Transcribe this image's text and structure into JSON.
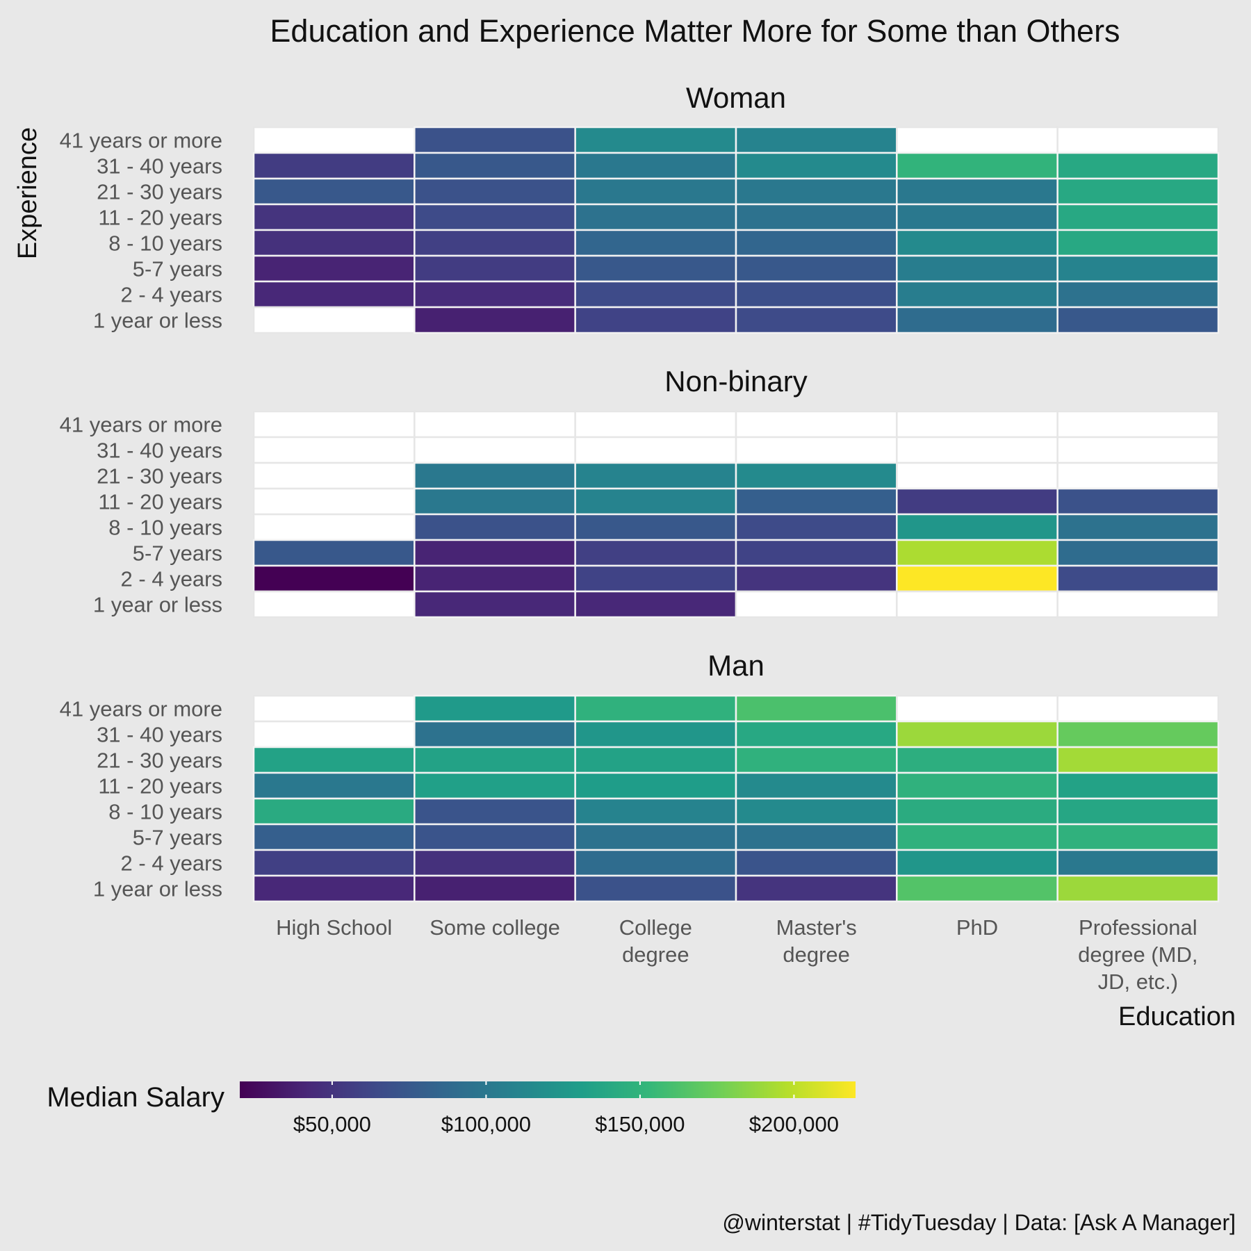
{
  "chart_data": {
    "type": "heatmap",
    "title": "Education and Experience Matter More for Some than Others",
    "xlabel": "Education",
    "ylabel": "Experience",
    "x_categories": [
      "High School",
      "Some college",
      "College degree",
      "Master's degree",
      "PhD",
      "Professional degree (MD, JD, etc.)"
    ],
    "x_tick_lines": [
      [
        "High School"
      ],
      [
        "Some college"
      ],
      [
        "College",
        "degree"
      ],
      [
        "Master's",
        "degree"
      ],
      [
        "PhD"
      ],
      [
        "Professional",
        "degree (MD,",
        "JD, etc.)"
      ]
    ],
    "y_categories": [
      "41 years or more",
      "31 - 40 years",
      "21 - 30 years",
      "11 - 20 years",
      "8 - 10 years",
      "5-7 years",
      "2 - 4 years",
      "1 year or less"
    ],
    "facets": [
      {
        "name": "Woman",
        "values": [
          [
            null,
            70000,
            115000,
            110000,
            null,
            null
          ],
          [
            55000,
            75000,
            100000,
            115000,
            150000,
            140000
          ],
          [
            75000,
            70000,
            100000,
            100000,
            100000,
            140000
          ],
          [
            50000,
            65000,
            95000,
            95000,
            100000,
            140000
          ],
          [
            48000,
            58000,
            85000,
            85000,
            115000,
            140000
          ],
          [
            40000,
            55000,
            75000,
            75000,
            105000,
            110000
          ],
          [
            42000,
            45000,
            65000,
            68000,
            105000,
            95000
          ],
          [
            null,
            38000,
            60000,
            65000,
            90000,
            75000
          ]
        ]
      },
      {
        "name": "Non-binary",
        "values": [
          [
            null,
            null,
            null,
            null,
            null,
            null
          ],
          [
            null,
            null,
            null,
            null,
            null,
            null
          ],
          [
            null,
            100000,
            110000,
            115000,
            null,
            null
          ],
          [
            null,
            100000,
            110000,
            80000,
            55000,
            70000
          ],
          [
            null,
            70000,
            75000,
            65000,
            125000,
            95000
          ],
          [
            75000,
            40000,
            58000,
            60000,
            195000,
            90000
          ],
          [
            20000,
            40000,
            60000,
            50000,
            220000,
            65000
          ],
          [
            null,
            42000,
            42000,
            null,
            null,
            null
          ]
        ]
      },
      {
        "name": "Man",
        "values": [
          [
            null,
            128000,
            148000,
            162000,
            null,
            null
          ],
          [
            null,
            95000,
            125000,
            140000,
            190000,
            172000
          ],
          [
            135000,
            135000,
            135000,
            148000,
            145000,
            192000
          ],
          [
            100000,
            133000,
            130000,
            115000,
            148000,
            135000
          ],
          [
            142000,
            72000,
            110000,
            115000,
            143000,
            138000
          ],
          [
            80000,
            72000,
            95000,
            95000,
            148000,
            148000
          ],
          [
            58000,
            48000,
            90000,
            72000,
            125000,
            100000
          ],
          [
            42000,
            38000,
            70000,
            50000,
            165000,
            190000
          ]
        ]
      }
    ],
    "missing_color": "#ffffff",
    "legend": {
      "title": "Median Salary",
      "min": 20000,
      "max": 220000,
      "ticks": [
        50000,
        100000,
        150000,
        200000
      ],
      "tick_labels": [
        "$50,000",
        "$100,000",
        "$150,000",
        "$200,000"
      ],
      "palette": [
        "#440154",
        "#482878",
        "#3e4a89",
        "#31688e",
        "#26828e",
        "#1f9e89",
        "#35b779",
        "#6ece58",
        "#b5de2b",
        "#fde725"
      ]
    },
    "caption": "@winterstat | #TidyTuesday | Data: [Ask A Manager]"
  }
}
